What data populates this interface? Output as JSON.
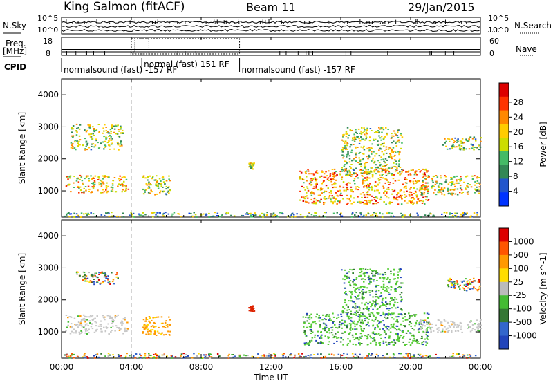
{
  "header": {
    "station": "King Salmon (fitACF)",
    "beam": "Beam 11",
    "date": "29/Jan/2015"
  },
  "side_labels": {
    "nsky": "N.Sky",
    "nsky_scale_top": "10^5",
    "nsky_scale_bottom": "10^0",
    "nsearch": "N.Search",
    "nsearch_scale_top": "10^5",
    "nsearch_scale_bottom": "10^0",
    "freq_line1": "Freq.",
    "freq_line2": "[MHz]",
    "freq_top": "18",
    "freq_bottom": "8",
    "nave": "Nave",
    "nave_top": "60",
    "nave_bottom": "0",
    "cpid": "CPID"
  },
  "cpid_segments": [
    {
      "label": "normalsound (fast) -157 RF",
      "start_hour": 0,
      "end_hour": 4.6
    },
    {
      "label": "normal (fast) 151 RF",
      "start_hour": 4.6,
      "end_hour": 10.2
    },
    {
      "label": "normalsound (fast) -157 RF",
      "start_hour": 10.2,
      "end_hour": 24
    }
  ],
  "chart_data": [
    {
      "type": "heatmap",
      "name": "power",
      "ylabel": "Slant Range [km]",
      "xlabel": "",
      "xlim": [
        0,
        24
      ],
      "ylim": [
        180,
        4500
      ],
      "yticks": [
        1000,
        2000,
        3000,
        4000
      ],
      "colorbar_label": "Power [dB]",
      "colorbar_ticks": [
        "4",
        "8",
        "12",
        "16",
        "20",
        "24",
        "28"
      ],
      "colorbar_colors": [
        "#0033ff",
        "#2255cc",
        "#338855",
        "#44bb66",
        "#ccdd00",
        "#ffcc00",
        "#ff8800",
        "#ff3300",
        "#dd0000"
      ],
      "dashed_vlines_hours": [
        4.0,
        10.0
      ],
      "scatter_regions": [
        {
          "start_hour": 0.2,
          "end_hour": 3.8,
          "range_low": 950,
          "range_high": 1500,
          "level": 0.55
        },
        {
          "start_hour": 0.5,
          "end_hour": 3.5,
          "range_low": 2300,
          "range_high": 3100,
          "level": 0.35
        },
        {
          "start_hour": 4.6,
          "end_hour": 6.2,
          "range_low": 900,
          "range_high": 1500,
          "level": 0.35
        },
        {
          "start_hour": 10.7,
          "end_hour": 11.0,
          "range_low": 1700,
          "range_high": 1900,
          "level": 0.3
        },
        {
          "start_hour": 13.6,
          "end_hour": 21.0,
          "range_low": 600,
          "range_high": 1700,
          "level": 0.65
        },
        {
          "start_hour": 16.0,
          "end_hour": 19.5,
          "range_low": 1500,
          "range_high": 3000,
          "level": 0.35
        },
        {
          "start_hour": 20.5,
          "end_hour": 24.0,
          "range_low": 900,
          "range_high": 1500,
          "level": 0.45
        },
        {
          "start_hour": 21.8,
          "end_hour": 24.0,
          "range_low": 2300,
          "range_high": 2700,
          "level": 0.3
        },
        {
          "start_hour": 0.0,
          "end_hour": 24.0,
          "range_low": 200,
          "range_high": 350,
          "level": 0.15
        }
      ]
    },
    {
      "type": "heatmap",
      "name": "velocity",
      "ylabel": "Slant Range [km]",
      "xlabel": "Time UT",
      "xlim": [
        0,
        24
      ],
      "ylim": [
        180,
        4500
      ],
      "yticks": [
        1000,
        2000,
        3000,
        4000
      ],
      "xticks": [
        "00:00",
        "04:00",
        "08:00",
        "12:00",
        "16:00",
        "20:00",
        "00:00"
      ],
      "colorbar_label": "Velocity [m s^-1]",
      "colorbar_ticks": [
        "1000",
        "500",
        "100",
        "25",
        "-25",
        "-100",
        "-500",
        "-1000"
      ],
      "colorbar_colors": [
        "#2244bb",
        "#3366cc",
        "#337733",
        "#44bb33",
        "#bbbbbb",
        "#ffdd00",
        "#ff9900",
        "#ff5500",
        "#dd0000"
      ],
      "dashed_vlines_hours": [
        4.0,
        10.0
      ],
      "scatter_regions": [
        {
          "start_hour": 0.2,
          "end_hour": 3.8,
          "range_low": 950,
          "range_high": 1550,
          "kind": "gray"
        },
        {
          "start_hour": 0.8,
          "end_hour": 3.2,
          "range_low": 2500,
          "range_high": 2900,
          "kind": "mixed"
        },
        {
          "start_hour": 4.6,
          "end_hour": 6.2,
          "range_low": 900,
          "range_high": 1500,
          "kind": "orange"
        },
        {
          "start_hour": 10.7,
          "end_hour": 11.0,
          "range_low": 1650,
          "range_high": 1850,
          "kind": "red"
        },
        {
          "start_hour": 13.8,
          "end_hour": 21.0,
          "range_low": 600,
          "range_high": 1600,
          "kind": "green"
        },
        {
          "start_hour": 16.0,
          "end_hour": 19.5,
          "range_low": 1500,
          "range_high": 3000,
          "kind": "green"
        },
        {
          "start_hour": 20.5,
          "end_hour": 24.0,
          "range_low": 1000,
          "range_high": 1400,
          "kind": "gray"
        },
        {
          "start_hour": 22.0,
          "end_hour": 24.0,
          "range_low": 2300,
          "range_high": 2700,
          "kind": "mixed"
        },
        {
          "start_hour": 0.0,
          "end_hour": 24.0,
          "range_low": 200,
          "range_high": 350,
          "kind": "mixed"
        }
      ]
    }
  ]
}
